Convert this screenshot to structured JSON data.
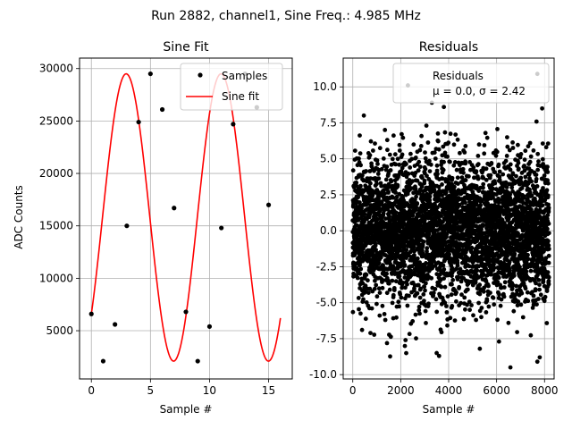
{
  "suptitle": "Run 2882, channel1, Sine Freq.: 4.985 MHz",
  "chart_data": [
    {
      "type": "line",
      "title": "Sine Fit",
      "xlabel": "Sample #",
      "ylabel": "ADC Counts",
      "xlim": [
        -1,
        17
      ],
      "ylim": [
        400,
        31000
      ],
      "xticks": [
        0,
        5,
        10,
        15
      ],
      "yticks": [
        5000,
        10000,
        15000,
        20000,
        25000,
        30000
      ],
      "grid": true,
      "legend": "top-right",
      "series": [
        {
          "name": "Samples",
          "kind": "scatter",
          "color": "#000000",
          "x": [
            0,
            1,
            2,
            3,
            4,
            5,
            6,
            7,
            8,
            9,
            10,
            11,
            12,
            13,
            14,
            15
          ],
          "y": [
            6600,
            2100,
            5600,
            15000,
            24900,
            29500,
            26100,
            16700,
            6800,
            2100,
            5400,
            14800,
            24700,
            29500,
            26300,
            17000
          ]
        },
        {
          "name": "Sine fit",
          "kind": "line",
          "color": "#ff0000",
          "model": {
            "offset": 15800,
            "amplitude": 13700,
            "period": 8.025,
            "phase_sample": 0,
            "phase_value": 6600,
            "x_range": [
              0,
              16
            ]
          }
        }
      ]
    },
    {
      "type": "scatter",
      "title": "Residuals",
      "xlabel": "Sample #",
      "ylabel": "",
      "xlim": [
        -400,
        8400
      ],
      "ylim": [
        -10.3,
        12.0
      ],
      "xticks": [
        0,
        2000,
        4000,
        6000,
        8000
      ],
      "yticks": [
        -10.0,
        -7.5,
        -5.0,
        -2.5,
        0.0,
        2.5,
        5.0,
        7.5,
        10.0
      ],
      "grid": true,
      "legend": "top-right",
      "series": [
        {
          "name": "Residuals",
          "legend_line2": "μ = 0.0, σ = 2.42",
          "color": "#000000",
          "n_points": 8192,
          "mean": 0.0,
          "std": 2.42,
          "x_range": [
            0,
            8191
          ],
          "notable_points": [
            {
              "x": 2300,
              "y": 10.1
            },
            {
              "x": 3300,
              "y": 8.9
            },
            {
              "x": 3800,
              "y": 8.6
            },
            {
              "x": 7700,
              "y": 10.9
            },
            {
              "x": 7900,
              "y": 8.5
            },
            {
              "x": 3500,
              "y": -8.5
            },
            {
              "x": 3600,
              "y": -8.7
            },
            {
              "x": 7700,
              "y": -9.1
            },
            {
              "x": 7800,
              "y": -8.8
            },
            {
              "x": 5300,
              "y": -8.2
            },
            {
              "x": 2200,
              "y": -7.6
            },
            {
              "x": 6100,
              "y": -7.7
            }
          ]
        }
      ]
    }
  ]
}
